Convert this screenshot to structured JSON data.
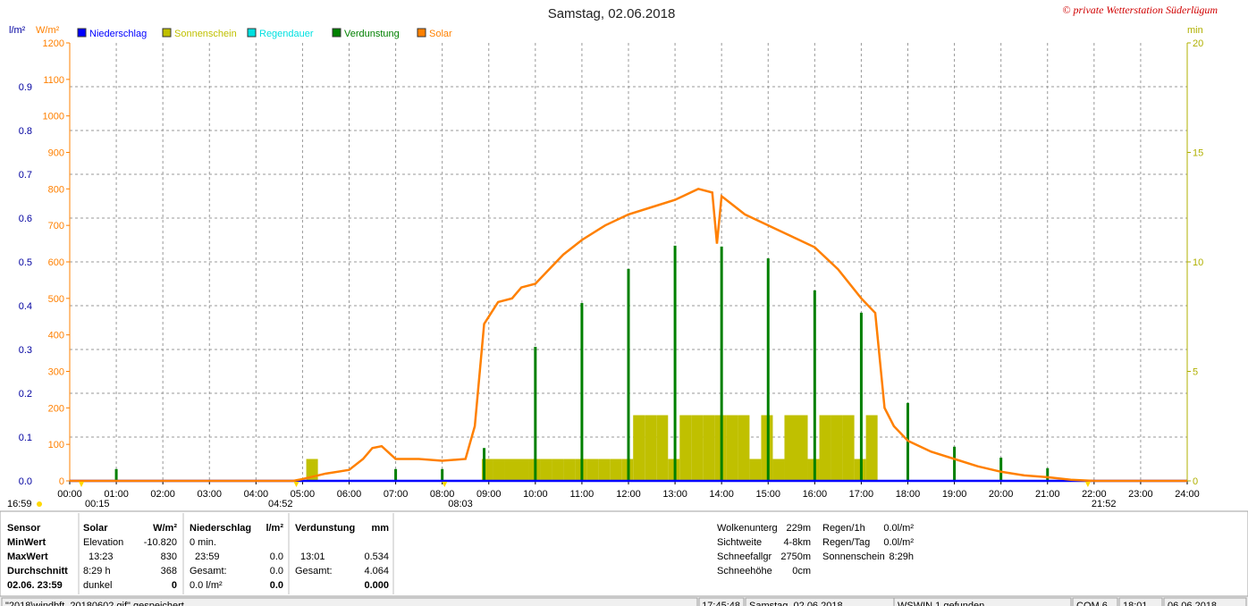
{
  "chart_data": {
    "type": "weather",
    "title": "Samstag, 02.06.2018",
    "copyright": "© private Wetterstation Süderlügum",
    "y_unit": "l/m²",
    "w_unit": "W/m²",
    "y2_unit": "min",
    "xlim": [
      0,
      24
    ],
    "xticks": [
      {
        "value": 0,
        "label": "00:00"
      },
      {
        "value": 1,
        "label": "01:00"
      },
      {
        "value": 2,
        "label": "02:00"
      },
      {
        "value": 3,
        "label": "03:00"
      },
      {
        "value": 4,
        "label": "04:00"
      },
      {
        "value": 5,
        "label": "05:00"
      },
      {
        "value": 6,
        "label": "06:00"
      },
      {
        "value": 7,
        "label": "07:00"
      },
      {
        "value": 8,
        "label": "08:00"
      },
      {
        "value": 9,
        "label": "09:00"
      },
      {
        "value": 10,
        "label": "10:00"
      },
      {
        "value": 11,
        "label": "11:00"
      },
      {
        "value": 12,
        "label": "12:00"
      },
      {
        "value": 13,
        "label": "13:00"
      },
      {
        "value": 14,
        "label": "14:00"
      },
      {
        "value": 15,
        "label": "15:00"
      },
      {
        "value": 16,
        "label": "16:00"
      },
      {
        "value": 17,
        "label": "17:00"
      },
      {
        "value": 18,
        "label": "18:00"
      },
      {
        "value": 19,
        "label": "19:00"
      },
      {
        "value": 20,
        "label": "20:00"
      },
      {
        "value": 21,
        "label": "21:00"
      },
      {
        "value": 22,
        "label": "22:00"
      },
      {
        "value": 23,
        "label": "23:00"
      },
      {
        "value": 24,
        "label": "24:00"
      }
    ],
    "ylim": [
      0,
      1.0
    ],
    "yticks": [
      {
        "value": 0,
        "label": "0.0"
      },
      0.1,
      0.2,
      0.3,
      0.4,
      0.5,
      0.6,
      0.7,
      0.8,
      0.9
    ],
    "wlim": [
      0,
      1200
    ],
    "wticks": [
      0,
      100,
      200,
      300,
      400,
      500,
      600,
      700,
      800,
      900,
      1000,
      1100,
      1200
    ],
    "y2lim": [
      0,
      20
    ],
    "y2ticks": [
      0,
      5,
      10,
      15,
      20
    ],
    "grid": true,
    "series": [
      {
        "name": "Niederschlag",
        "color": "#0000ff",
        "kind": "line",
        "axis": "y",
        "x": [
          0,
          24
        ],
        "values": [
          0,
          0
        ]
      },
      {
        "name": "Sonnenschein",
        "color": "#c0c000",
        "kind": "bar",
        "axis": "y2",
        "x": [
          5.08,
          8.85,
          9.1,
          9.35,
          9.6,
          9.85,
          10.1,
          10.35,
          10.6,
          10.85,
          11.1,
          11.35,
          11.6,
          11.85,
          12.1,
          12.35,
          12.6,
          12.85,
          13.1,
          13.35,
          13.6,
          13.85,
          14.1,
          14.35,
          14.6,
          14.85,
          15.1,
          15.35,
          15.6,
          15.85,
          16.1,
          16.35,
          16.6,
          16.85,
          17.1
        ],
        "values": [
          1,
          1,
          1,
          1,
          1,
          1,
          1,
          1,
          1,
          1,
          1,
          1,
          1,
          1,
          3,
          3,
          3,
          1,
          3,
          3,
          3,
          3,
          3,
          3,
          1,
          3,
          1,
          3,
          3,
          1,
          3,
          3,
          3,
          1,
          3
        ]
      },
      {
        "name": "Regendauer",
        "color": "#00e0e0"
      },
      {
        "name": "Verdunstung",
        "color": "#008000",
        "kind": "spike",
        "axis": "y",
        "x": [
          1,
          7,
          8,
          8.9,
          10,
          11,
          12,
          13,
          14,
          15,
          16,
          17,
          18,
          19,
          20,
          21
        ],
        "values": [
          0.027,
          0.027,
          0.027,
          0.075,
          0.306,
          0.406,
          0.484,
          0.537,
          0.535,
          0.508,
          0.435,
          0.384,
          0.178,
          0.078,
          0.053,
          0.029
        ]
      },
      {
        "name": "Solar",
        "color": "#ff8000",
        "kind": "line",
        "axis": "w",
        "x": [
          0,
          4.8,
          5.0,
          5.5,
          6.0,
          6.3,
          6.5,
          6.7,
          7.0,
          7.5,
          8.0,
          8.5,
          8.7,
          8.9,
          9.2,
          9.5,
          9.7,
          10.0,
          10.3,
          10.6,
          11.0,
          11.5,
          12.0,
          12.5,
          13.0,
          13.5,
          13.8,
          13.9,
          14.0,
          14.2,
          14.5,
          15.0,
          15.5,
          16.0,
          16.5,
          17.0,
          17.3,
          17.4,
          17.5,
          17.7,
          18.0,
          18.5,
          19.0,
          19.5,
          20.0,
          20.5,
          21.0,
          21.5,
          22.0,
          24.0
        ],
        "values": [
          0,
          0,
          5,
          20,
          30,
          60,
          90,
          95,
          60,
          60,
          55,
          60,
          150,
          430,
          490,
          500,
          530,
          540,
          580,
          620,
          660,
          700,
          730,
          750,
          770,
          800,
          790,
          650,
          780,
          760,
          730,
          700,
          670,
          640,
          580,
          500,
          460,
          330,
          200,
          150,
          110,
          80,
          60,
          40,
          25,
          15,
          10,
          3,
          0,
          0
        ]
      }
    ],
    "markers": [
      {
        "x": 0.25,
        "label": "00:15"
      },
      {
        "x": 4.867,
        "label": "04:52"
      },
      {
        "x": 8.05,
        "label": "08:03"
      },
      {
        "x": 21.867,
        "label": "21:52"
      }
    ],
    "left_marker": "16:59"
  },
  "panel": {
    "sensor": [
      "Sensor",
      "MinWert",
      "MaxWert",
      "Durchschnitt",
      "02.06. 23:59"
    ],
    "blocks": [
      {
        "rows": [
          {
            "row": 0,
            "left": "Solar",
            "right": "W/m²"
          },
          {
            "row": 1,
            "left": "Elevation",
            "right": "-10.820"
          },
          {
            "row": 2,
            "left": "13:23",
            "right": "830"
          },
          {
            "row": 3,
            "left": "8:29 h",
            "right": "368"
          },
          {
            "row": 4,
            "left": "dunkel",
            "right": "0"
          }
        ]
      },
      {
        "rows": [
          {
            "row": 0,
            "left": "Niederschlag",
            "right": "l/m²"
          },
          {
            "row": 1,
            "left": "0 min."
          },
          {
            "row": 2,
            "left": "23:59",
            "right": "0.0"
          },
          {
            "row": 3,
            "left": "Gesamt:",
            "right": "0.0"
          },
          {
            "row": 4,
            "left": "0.0 l/m²",
            "right": "0.0"
          }
        ]
      },
      {
        "rows": [
          {
            "row": 0,
            "left": "Verdunstung",
            "right": "mm"
          },
          {
            "row": 2,
            "left": "13:01",
            "right": "0.534"
          },
          {
            "row": 3,
            "left": "Gesamt:",
            "right": "4.064"
          },
          {
            "row": 4,
            "right": "0.000"
          }
        ]
      }
    ],
    "info1": [
      [
        "Wolkenunterg",
        "229m"
      ],
      [
        "Sichtweite",
        "4-8km"
      ],
      [
        "Schneefallgr",
        "2750m"
      ],
      [
        "Schneehöhe",
        "0cm"
      ]
    ],
    "info2": [
      [
        "Regen/1h",
        "0.0l/m²"
      ],
      [
        "Regen/Tag",
        "0.0l/m²"
      ],
      [
        "Sonnenschein",
        "8:29h"
      ]
    ]
  },
  "status": [
    "\"2018\\windbft_20180602.gif\" gespeichert",
    "17:45:48",
    "Samstag, 02.06.2018",
    "WSWIN 1 gefunden",
    "COM 6",
    "18:01",
    "06.06.2018"
  ]
}
